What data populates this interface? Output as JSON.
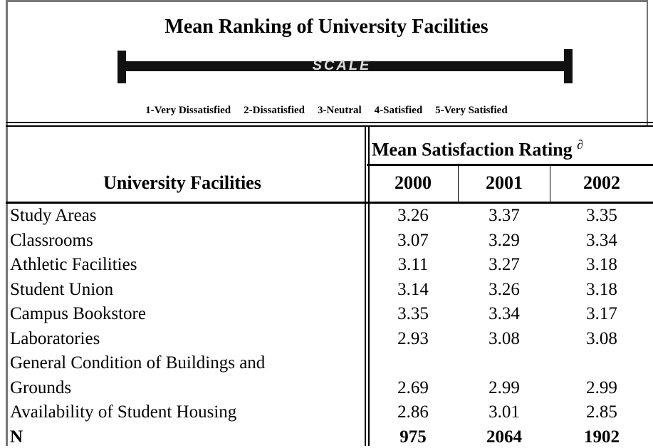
{
  "title": "Mean Ranking of University Facilities",
  "scale": {
    "label": "SCALE",
    "points": [
      "1-Very Dissatisfied",
      "2-Dissatisfied",
      "3-Neutral",
      "4-Satisfied",
      "5-Very Satisfied"
    ]
  },
  "table": {
    "group_header": "Mean Satisfaction Rating",
    "group_header_mark": "∂",
    "headers": [
      "University Facilities",
      "2000",
      "2001",
      "2002"
    ],
    "rows": [
      {
        "label": "Study Areas",
        "values": [
          3.26,
          3.37,
          3.35
        ]
      },
      {
        "label": "Classrooms",
        "values": [
          3.07,
          3.29,
          3.34
        ]
      },
      {
        "label": "Athletic Facilities",
        "values": [
          3.11,
          3.27,
          3.18
        ]
      },
      {
        "label": "Student Union",
        "values": [
          3.14,
          3.26,
          3.18
        ]
      },
      {
        "label": "Campus Bookstore",
        "values": [
          3.35,
          3.34,
          3.17
        ]
      },
      {
        "label": "Laboratories",
        "values": [
          2.93,
          3.08,
          3.08
        ]
      },
      {
        "label": [
          "General Condition of Buildings and",
          "Grounds"
        ],
        "values": [
          2.69,
          2.99,
          2.99
        ]
      },
      {
        "label": "Availability of Student Housing",
        "values": [
          2.86,
          3.01,
          2.85
        ]
      }
    ],
    "total": {
      "label": "N",
      "values": [
        975,
        2064,
        1902
      ]
    }
  }
}
